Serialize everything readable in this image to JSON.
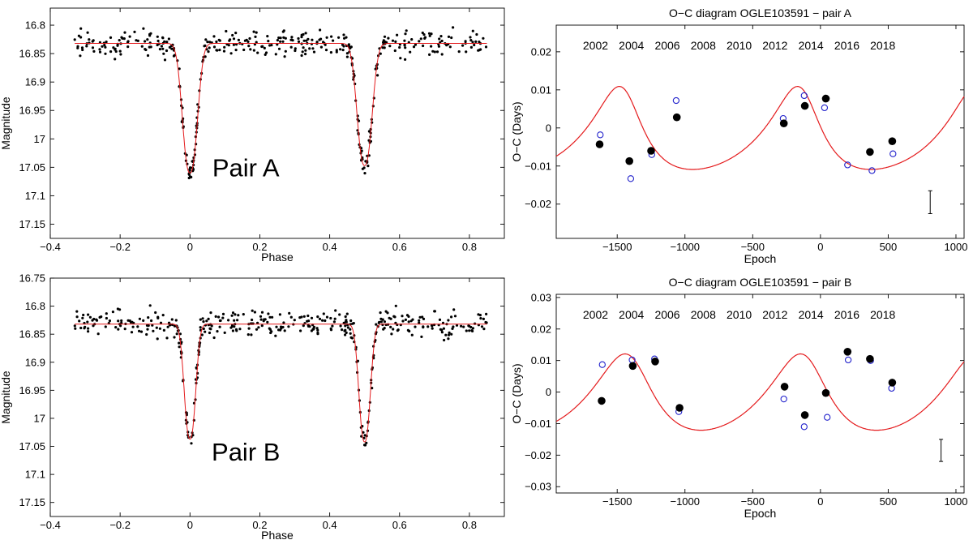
{
  "chart_data": [
    {
      "id": "lcA",
      "type": "scatter",
      "title": "",
      "annotation": "Pair A",
      "xlabel": "Phase",
      "ylabel": "Magnitude",
      "xlim": [
        -0.4,
        0.9
      ],
      "ylim": [
        16.77,
        17.175
      ],
      "y_inverted": true,
      "xticks": [
        -0.4,
        -0.2,
        0,
        0.2,
        0.4,
        0.6,
        0.8
      ],
      "xtick_labels": [
        "−0.4",
        "−0.2",
        "0",
        "0.2",
        "0.4",
        "0.6",
        "0.8"
      ],
      "yticks": [
        16.8,
        16.85,
        16.9,
        16.95,
        17,
        17.05,
        17.1,
        17.15
      ],
      "ytick_labels": [
        "16.8",
        "16.85",
        "16.9",
        "16.95",
        "17",
        "17.05",
        "17.1",
        "17.15"
      ],
      "model": {
        "base": 16.832,
        "primary_center": 0.0,
        "primary_depth": 0.228,
        "secondary_center": 0.5,
        "secondary_depth": 0.215,
        "sigma": 0.021,
        "phase_range": [
          -0.33,
          0.85
        ],
        "color": "#e41a1c"
      },
      "observations": {
        "n": 330,
        "scatter_mag": 0.016,
        "phase_range": [
          -0.33,
          0.85
        ],
        "seed": 11,
        "color": "#000000"
      }
    },
    {
      "id": "lcB",
      "type": "scatter",
      "title": "",
      "annotation": "Pair B",
      "xlabel": "Phase",
      "ylabel": "Magnitude",
      "xlim": [
        -0.4,
        0.9
      ],
      "ylim": [
        16.75,
        17.175
      ],
      "y_inverted": true,
      "xticks": [
        -0.4,
        -0.2,
        0,
        0.2,
        0.4,
        0.6,
        0.8
      ],
      "xtick_labels": [
        "−0.4",
        "−0.2",
        "0",
        "0.2",
        "0.4",
        "0.6",
        "0.8"
      ],
      "yticks": [
        16.75,
        16.8,
        16.85,
        16.9,
        16.95,
        17,
        17.05,
        17.1,
        17.15
      ],
      "ytick_labels": [
        "16.75",
        "16.8",
        "16.85",
        "16.9",
        "16.95",
        "17",
        "17.05",
        "17.1",
        "17.15"
      ],
      "model": {
        "base": 16.832,
        "primary_center": 0.0,
        "primary_depth": 0.205,
        "secondary_center": 0.5,
        "secondary_depth": 0.21,
        "sigma": 0.016,
        "phase_range": [
          -0.33,
          0.85
        ],
        "color": "#e41a1c"
      },
      "observations": {
        "n": 340,
        "scatter_mag": 0.016,
        "phase_range": [
          -0.33,
          0.85
        ],
        "seed": 29,
        "color": "#000000"
      }
    },
    {
      "id": "ocA",
      "type": "scatter",
      "title": "O−C diagram OGLE103591 − pair A",
      "xlabel": "Epoch",
      "ylabel": "O−C (Days)",
      "xlim": [
        -1950,
        1060
      ],
      "ylim": [
        -0.029,
        0.027
      ],
      "xticks": [
        -1500,
        -1000,
        -500,
        0,
        500,
        1000
      ],
      "xtick_labels": [
        "−1500",
        "−1000",
        "−500",
        "0",
        "500",
        "1000"
      ],
      "yticks": [
        0.02,
        0.01,
        0,
        -0.01,
        -0.02
      ],
      "ytick_labels": [
        "0.02",
        "0.01",
        "0",
        "−0.01",
        "−0.02"
      ],
      "top_axis_years": [
        "2002",
        "2004",
        "2006",
        "2008",
        "2010",
        "2012",
        "2014",
        "2016",
        "2018"
      ],
      "top_axis_year_epochs": [
        -1660,
        -1395,
        -1130,
        -865,
        -600,
        -335,
        -70,
        195,
        460
      ],
      "model": {
        "period_epochs": 1315,
        "amplitude": 0.0109,
        "eccentricity": 0.32,
        "phase_epoch": -1440,
        "color": "#e41a1c"
      },
      "primary_minima": {
        "epoch": [
          -1630,
          -1410,
          -1250,
          -1060,
          -270,
          -115,
          40,
          365,
          530
        ],
        "oc": [
          -0.0043,
          -0.0087,
          -0.006,
          0.0028,
          0.0012,
          0.0058,
          0.0077,
          -0.0063,
          -0.0035
        ],
        "marker": "filled-circle",
        "color": "#000000"
      },
      "secondary_minima": {
        "epoch": [
          -1625,
          -1400,
          -1245,
          -1065,
          -275,
          -120,
          30,
          200,
          380,
          535
        ],
        "oc": [
          -0.0018,
          -0.0133,
          -0.007,
          0.0072,
          0.0025,
          0.0085,
          0.0053,
          -0.0097,
          -0.0112,
          -0.0068
        ],
        "marker": "open-circle",
        "color": "#2222cc"
      },
      "error_bar": {
        "epoch": 810,
        "oc": -0.0195,
        "halfwidth": 0.003
      }
    },
    {
      "id": "ocB",
      "type": "scatter",
      "title": "O−C diagram OGLE103591 − pair B",
      "xlabel": "Epoch",
      "ylabel": "O−C (Days)",
      "xlim": [
        -1950,
        1060
      ],
      "ylim": [
        -0.032,
        0.031
      ],
      "xticks": [
        -1500,
        -1000,
        -500,
        0,
        500,
        1000
      ],
      "xtick_labels": [
        "−1500",
        "−1000",
        "−500",
        "0",
        "500",
        "1000"
      ],
      "yticks": [
        0.03,
        0.02,
        0.01,
        0,
        -0.01,
        -0.02,
        -0.03
      ],
      "ytick_labels": [
        "0.03",
        "0.02",
        "0.01",
        "0",
        "−0.01",
        "−0.02",
        "−0.03"
      ],
      "top_axis_years": [
        "2002",
        "2004",
        "2006",
        "2008",
        "2010",
        "2012",
        "2014",
        "2016",
        "2018"
      ],
      "top_axis_year_epochs": [
        -1660,
        -1395,
        -1130,
        -865,
        -600,
        -335,
        -70,
        195,
        460
      ],
      "model": {
        "period_epochs": 1295,
        "amplitude": 0.0121,
        "eccentricity": 0.25,
        "phase_epoch": -1390,
        "color": "#e41a1c"
      },
      "primary_minima": {
        "epoch": [
          -1615,
          -1385,
          -1220,
          -1040,
          -265,
          -115,
          40,
          200,
          365,
          530
        ],
        "oc": [
          -0.0028,
          0.0083,
          0.0097,
          -0.005,
          0.0017,
          -0.0073,
          -0.0003,
          0.0128,
          0.0105,
          0.003
        ],
        "marker": "filled-circle",
        "color": "#000000"
      },
      "secondary_minima": {
        "epoch": [
          -1610,
          -1390,
          -1225,
          -1045,
          -270,
          -120,
          50,
          205,
          370,
          525
        ],
        "oc": [
          0.0087,
          0.0102,
          0.0105,
          -0.0062,
          -0.0022,
          -0.011,
          -0.008,
          0.0102,
          0.01,
          0.0012
        ],
        "marker": "open-circle",
        "color": "#2222cc"
      },
      "error_bar": {
        "epoch": 890,
        "oc": -0.0185,
        "halfwidth": 0.0035
      }
    }
  ]
}
